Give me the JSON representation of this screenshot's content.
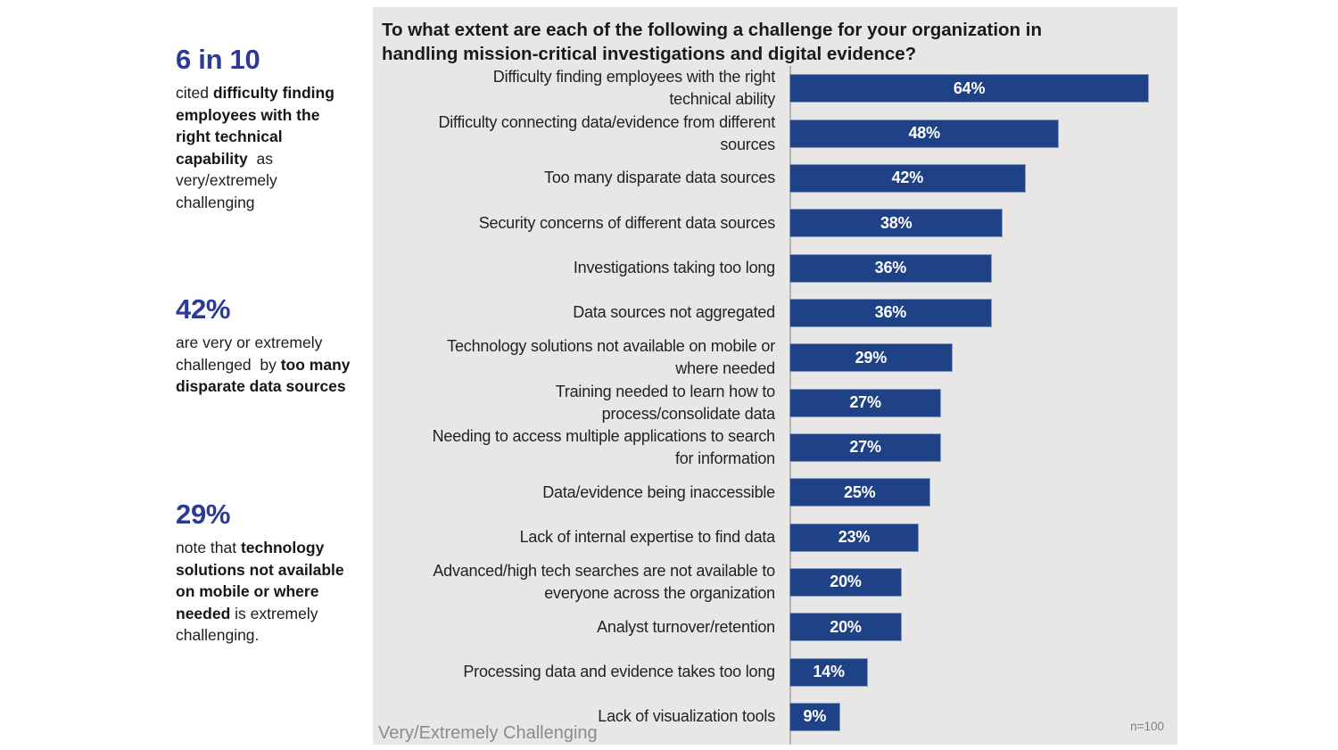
{
  "colors": {
    "bar": "#1F4287",
    "stat_headline": "#2B3A94",
    "panel_bg": "#E8E7E5",
    "axis_line": "#B3B3B3",
    "muted_text": "#8B8B8B"
  },
  "sidebar": {
    "stats": [
      {
        "headline": "6 in 10",
        "parts": [
          {
            "t": "cited ",
            "b": false
          },
          {
            "t": "difficulty finding employees with the right technical capability",
            "b": true
          },
          {
            "t": "  as very/extremely challenging",
            "b": false
          }
        ]
      },
      {
        "headline": "42%",
        "parts": [
          {
            "t": "are very or extremely challenged  by ",
            "b": false
          },
          {
            "t": "too many disparate data sources",
            "b": true
          }
        ]
      },
      {
        "headline": "29%",
        "parts": [
          {
            "t": "note that ",
            "b": false
          },
          {
            "t": "technology solutions not available on mobile or where needed",
            "b": true
          },
          {
            "t": " is extremely challenging.",
            "b": false
          }
        ]
      }
    ]
  },
  "chart": {
    "title": "To what extent are each of the following a challenge for your organization in\nhandling mission-critical investigations and digital evidence?",
    "footer_left": "Very/Extremely Challenging",
    "sample_note": "n=100"
  },
  "chart_data": {
    "type": "bar",
    "orientation": "horizontal",
    "title": "To what extent are each of the following a challenge for your organization in handling mission-critical investigations and digital evidence?",
    "categories": [
      "Difficulty finding employees with the right\ntechnical ability",
      "Difficulty connecting data/evidence from different\nsources",
      "Too many disparate data sources",
      "Security concerns of different data sources",
      "Investigations taking too long",
      "Data sources not aggregated",
      "Technology solutions not available on mobile or\nwhere needed",
      "Training needed to learn how to\nprocess/consolidate data",
      "Needing to access multiple applications to search\nfor information",
      "Data/evidence being inaccessible",
      "Lack of internal expertise to find data",
      "Advanced/high tech searches are not available to\neveryone across the organization",
      "Analyst turnover/retention",
      "Processing data and evidence takes too long",
      "Lack of visualization tools"
    ],
    "values": [
      64,
      48,
      42,
      38,
      36,
      36,
      29,
      27,
      27,
      25,
      23,
      20,
      20,
      14,
      9
    ],
    "unit": "%",
    "xlabel": "",
    "ylabel": "",
    "xlim": [
      0,
      69
    ],
    "grid": false,
    "legend": false,
    "data_labels": "inside-center, white, bold, value + %",
    "annotations": {
      "axis_caption": "Very/Extremely Challenging",
      "sample_size": "n=100"
    }
  }
}
